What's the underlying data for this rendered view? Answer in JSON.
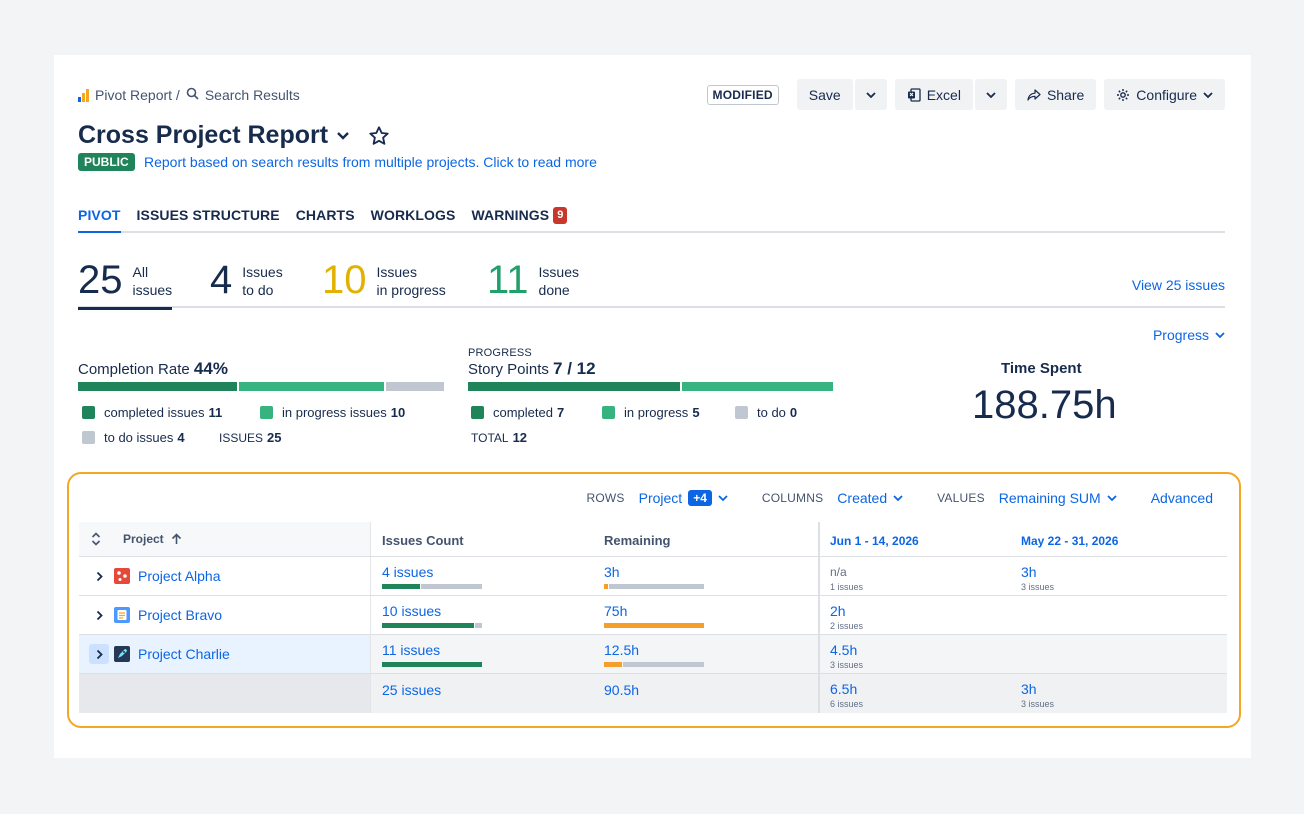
{
  "breadcrumb": {
    "root": "Pivot Report /",
    "current": "Search Results"
  },
  "header": {
    "modified_badge": "MODIFIED",
    "save_label": "Save",
    "excel_label": "Excel",
    "share_label": "Share",
    "configure_label": "Configure",
    "title": "Cross Project Report",
    "visibility": "PUBLIC",
    "description": "Report based on search results from multiple projects. Click to read more"
  },
  "tabs": [
    {
      "label": "PIVOT",
      "active": true
    },
    {
      "label": "ISSUES STRUCTURE"
    },
    {
      "label": "CHARTS"
    },
    {
      "label": "WORKLOGS"
    },
    {
      "label": "WARNINGS",
      "badge": "9"
    }
  ],
  "stats": [
    {
      "num": "25",
      "label": "All\nissues",
      "color": "#172b4d"
    },
    {
      "num": "4",
      "label": "Issues\nto do",
      "color": "#172b4d"
    },
    {
      "num": "10",
      "label": "Issues\nin progress",
      "color": "#e2b203"
    },
    {
      "num": "11",
      "label": "Issues\ndone",
      "color": "#22a06b"
    }
  ],
  "view_issues": "View 25 issues",
  "progress_dropdown": "Progress",
  "completion": {
    "title": "Completion Rate",
    "rate": "44%",
    "bar": [
      0.44,
      0.4,
      0.16
    ],
    "completed_label": "completed issues",
    "completed": "11",
    "in_progress_label": "in progress issues",
    "in_progress": "10",
    "todo_label": "to do issues",
    "todo": "4",
    "issues_label": "ISSUES",
    "issues": "25"
  },
  "story_points": {
    "caption": "PROGRESS",
    "title": "Story Points",
    "value": "7 / 12",
    "bar": [
      7,
      5,
      0
    ],
    "completed_label": "completed",
    "completed": "7",
    "in_progress_label": "in progress",
    "in_progress": "5",
    "todo_label": "to do",
    "todo": "0",
    "total_label": "TOTAL",
    "total": "12"
  },
  "time_spent": {
    "title": "Time Spent",
    "value": "188.75h"
  },
  "colors": {
    "done": "#1f845a",
    "progress": "#36b37e",
    "todo": "#c1c7d0",
    "accent": "#0c66e4",
    "orange": "#f5a623",
    "remaining": "#f59e2b"
  },
  "pivot": {
    "rows_label": "ROWS",
    "rows_value": "Project",
    "rows_badge": "+4",
    "columns_label": "COLUMNS",
    "columns_value": "Created",
    "values_label": "VALUES",
    "values_value": "Remaining SUM",
    "advanced": "Advanced",
    "headers": {
      "project": "Project",
      "issues_count": "Issues Count",
      "remaining": "Remaining",
      "date1": "Jun 1 - 14, 2026",
      "date2": "May 22 - 31, 2026"
    },
    "rows": [
      {
        "name": "Project Alpha",
        "icon": "alpha-icon",
        "issues": "4 issues",
        "issues_fill": [
          0.38,
          0.62
        ],
        "remaining": "3h",
        "remaining_fill": 0.04,
        "d1": "n/a",
        "d1_sub": "1 issues",
        "d2": "3h",
        "d2_sub": "3 issues"
      },
      {
        "name": "Project Bravo",
        "icon": "bravo-icon",
        "issues": "10 issues",
        "issues_fill": [
          0.92,
          0.08
        ],
        "remaining": "75h",
        "remaining_fill": 1.0,
        "d1": "2h",
        "d1_sub": "2 issues",
        "d2": "",
        "d2_sub": ""
      },
      {
        "name": "Project Charlie",
        "icon": "charlie-icon",
        "issues": "11 issues",
        "issues_fill": [
          1.0,
          0.0
        ],
        "remaining": "12.5h",
        "remaining_fill": 0.18,
        "d1": "4.5h",
        "d1_sub": "3 issues",
        "d2": "",
        "d2_sub": ""
      }
    ],
    "totals": {
      "issues": "25 issues",
      "remaining": "90.5h",
      "d1": "6.5h",
      "d1_sub": "6 issues",
      "d2": "3h",
      "d2_sub": "3 issues"
    }
  }
}
